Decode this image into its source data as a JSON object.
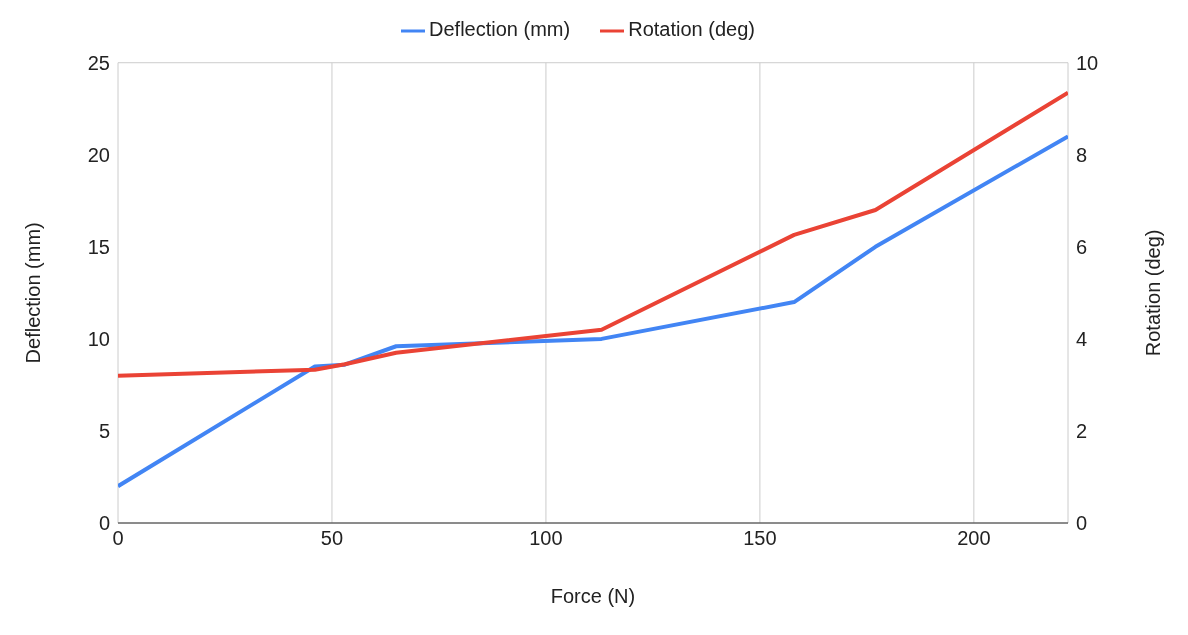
{
  "chart_data": {
    "type": "line",
    "xlabel": "Force (N)",
    "ylabel": "Deflection (mm)",
    "y2label": "Rotation (deg)",
    "x": [
      0,
      46,
      53,
      65,
      113,
      158,
      177,
      222
    ],
    "series": [
      {
        "name": "Deflection (mm)",
        "color": "#4285f4",
        "values": [
          2,
          8.5,
          8.6,
          9.6,
          10,
          12,
          15,
          21
        ]
      },
      {
        "name": "Rotation (deg)",
        "color": "#ea4335",
        "axis": "y2",
        "values": [
          3.2,
          3.33,
          3.45,
          3.7,
          4.2,
          6.26,
          6.8,
          9.35
        ]
      }
    ],
    "xlim": [
      0,
      222
    ],
    "xticks": [
      0,
      50,
      100,
      150,
      200
    ],
    "ylim": [
      0,
      25
    ],
    "yticks": [
      0,
      5,
      10,
      15,
      20,
      25
    ],
    "y2lim": [
      0,
      10
    ],
    "y2ticks": [
      0,
      2,
      4,
      6,
      8,
      10
    ],
    "grid": true,
    "legend": "top",
    "marker": "none",
    "line_style": "solid"
  }
}
